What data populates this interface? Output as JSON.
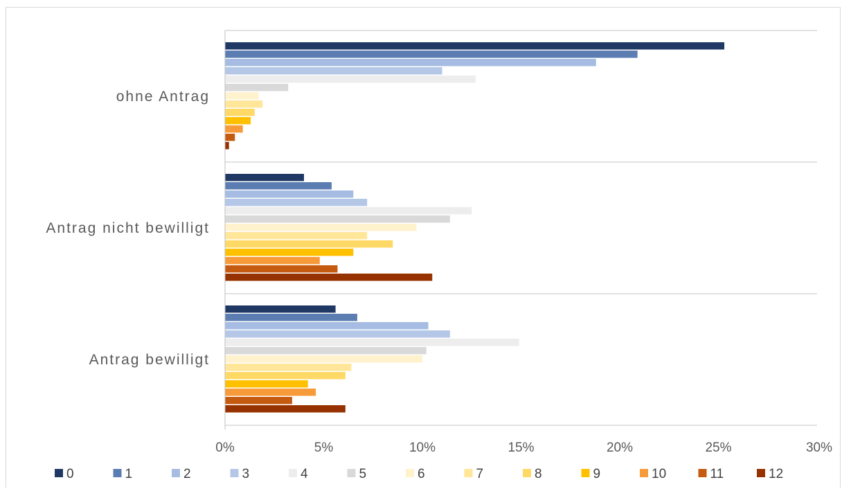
{
  "chart_data": {
    "type": "bar",
    "orientation": "horizontal",
    "categories": [
      "ohne Antrag",
      "Antrag nicht bewilligt",
      "Antrag bewilligt"
    ],
    "xlim": [
      0,
      30
    ],
    "x_ticks": [
      "0%",
      "5%",
      "10%",
      "15%",
      "20%",
      "25%",
      "30%"
    ],
    "grid": "horizontal separators between categories",
    "legend_position": "bottom",
    "series": [
      {
        "name": "0",
        "color": "#203864",
        "values": [
          25.3,
          4.0,
          5.6
        ]
      },
      {
        "name": "1",
        "color": "#5b7db1",
        "values": [
          20.9,
          5.4,
          6.7
        ]
      },
      {
        "name": "2",
        "color": "#a6bce3",
        "values": [
          18.8,
          6.5,
          10.3
        ]
      },
      {
        "name": "3",
        "color": "#b4c7e7",
        "values": [
          11.0,
          7.2,
          11.4
        ]
      },
      {
        "name": "4",
        "color": "#ededed",
        "values": [
          12.7,
          12.5,
          14.9
        ]
      },
      {
        "name": "5",
        "color": "#d9d9d9",
        "values": [
          3.2,
          11.4,
          10.2
        ]
      },
      {
        "name": "6",
        "color": "#fff2cc",
        "values": [
          1.7,
          9.7,
          10.0
        ]
      },
      {
        "name": "7",
        "color": "#ffe699",
        "values": [
          1.9,
          7.2,
          6.4
        ]
      },
      {
        "name": "8",
        "color": "#ffd966",
        "values": [
          1.5,
          8.5,
          6.1
        ]
      },
      {
        "name": "9",
        "color": "#ffc000",
        "values": [
          1.3,
          6.5,
          4.2
        ]
      },
      {
        "name": "10",
        "color": "#f79a3a",
        "values": [
          0.9,
          4.8,
          4.6
        ]
      },
      {
        "name": "11",
        "color": "#c55a11",
        "values": [
          0.5,
          5.7,
          3.4
        ]
      },
      {
        "name": "12",
        "color": "#963200",
        "values": [
          0.2,
          10.5,
          6.1
        ]
      }
    ]
  }
}
